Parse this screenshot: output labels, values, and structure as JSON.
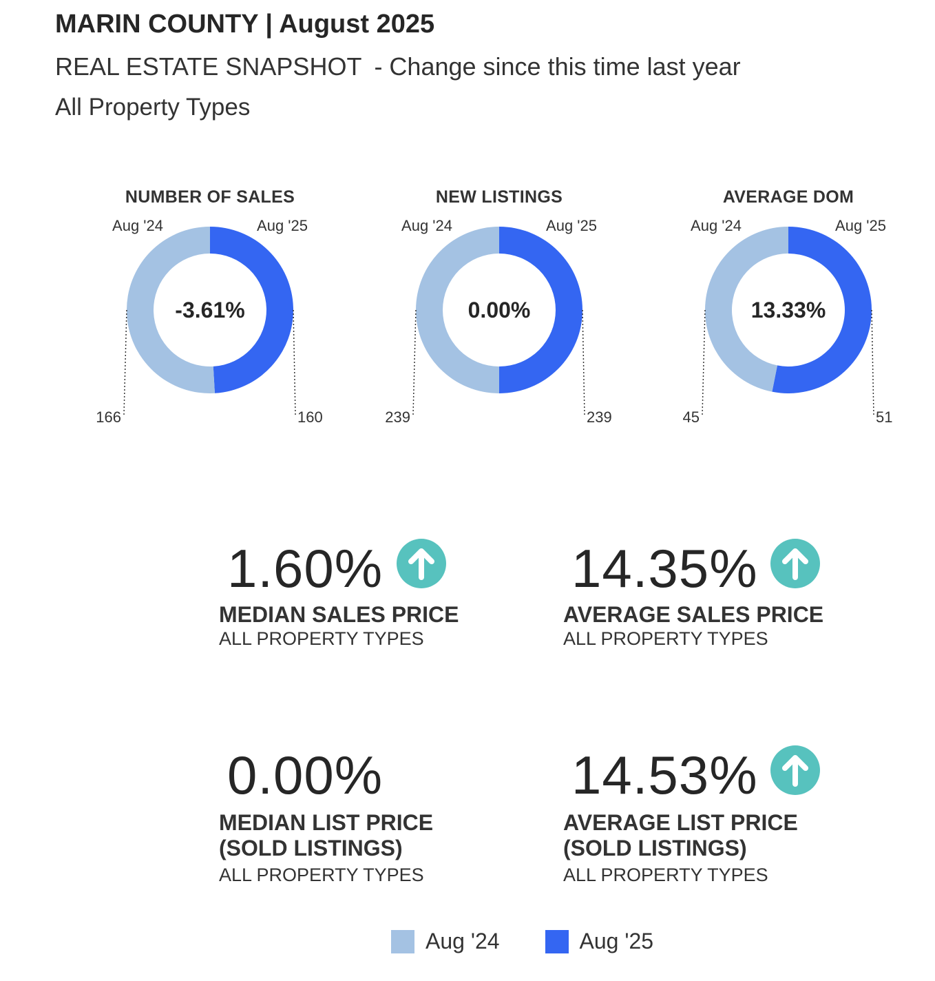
{
  "header": {
    "title": "MARIN COUNTY | August 2025",
    "subtitle_main": "REAL ESTATE SNAPSHOT",
    "subtitle_change": "- Change since this time last year",
    "property_filter": "All Property Types"
  },
  "colors": {
    "prev_year": "#a4c2e3",
    "curr_year": "#3466f2",
    "arrow": "#57c2be",
    "text": "#262626"
  },
  "icons": {
    "up_arrow": "up-arrow-circle-icon"
  },
  "chart_data": [
    {
      "type": "pie",
      "title": "NUMBER OF SALES",
      "categories": [
        "Aug '24",
        "Aug '25"
      ],
      "values": [
        166,
        160
      ],
      "value_labels": [
        "166",
        "160"
      ],
      "center_label": "-3.61%"
    },
    {
      "type": "pie",
      "title": "NEW LISTINGS",
      "categories": [
        "Aug '24",
        "Aug '25"
      ],
      "values": [
        239,
        239
      ],
      "value_labels": [
        "239",
        "239"
      ],
      "center_label": "0.00%"
    },
    {
      "type": "pie",
      "title": "AVERAGE DOM",
      "categories": [
        "Aug '24",
        "Aug '25"
      ],
      "values": [
        45,
        51
      ],
      "value_labels": [
        "45",
        "51"
      ],
      "center_label": "13.33%"
    }
  ],
  "kpis": [
    {
      "value": "1.60%",
      "up": true,
      "label_lines": [
        "MEDIAN SALES PRICE"
      ],
      "sub": "ALL PROPERTY TYPES"
    },
    {
      "value": "14.35%",
      "up": true,
      "label_lines": [
        "AVERAGE SALES PRICE"
      ],
      "sub": "ALL PROPERTY TYPES"
    },
    {
      "value": "0.00%",
      "up": false,
      "label_lines": [
        "MEDIAN LIST PRICE",
        "(SOLD LISTINGS)"
      ],
      "sub": "ALL PROPERTY TYPES"
    },
    {
      "value": "14.53%",
      "up": true,
      "label_lines": [
        "AVERAGE LIST PRICE",
        "(SOLD LISTINGS)"
      ],
      "sub": "ALL PROPERTY TYPES"
    }
  ],
  "legend": [
    {
      "label": "Aug '24"
    },
    {
      "label": "Aug '25"
    }
  ]
}
